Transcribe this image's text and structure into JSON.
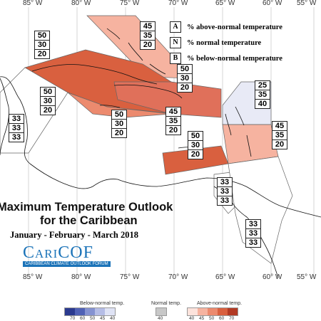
{
  "longitudes": {
    "top": [
      "85° W",
      "80° W",
      "75° W",
      "70° W",
      "65° W",
      "60° W",
      "55° W"
    ],
    "bottom": [
      "85° W",
      "80° W",
      "75° W",
      "70° W",
      "65° W",
      "60° W",
      "55° W"
    ]
  },
  "legend": {
    "items": [
      {
        "key": "A",
        "text": "% above-normal temperature"
      },
      {
        "key": "N",
        "text": "% normal temperature"
      },
      {
        "key": "B",
        "text": "% below-normal temperature"
      }
    ]
  },
  "probability_boxes": [
    {
      "id": "bahamas",
      "values": [
        "45",
        "35",
        "20"
      ]
    },
    {
      "id": "west-cuba",
      "values": [
        "50",
        "30",
        "20"
      ]
    },
    {
      "id": "turks-caicos",
      "values": [
        "50",
        "30",
        "20"
      ]
    },
    {
      "id": "cuba-central",
      "values": [
        "50",
        "30",
        "20"
      ]
    },
    {
      "id": "jamaica",
      "values": [
        "50",
        "30",
        "20"
      ]
    },
    {
      "id": "hispaniola",
      "values": [
        "45",
        "35",
        "20"
      ]
    },
    {
      "id": "leeward-islands",
      "values": [
        "25",
        "35",
        "40"
      ]
    },
    {
      "id": "windward-islands",
      "values": [
        "45",
        "35",
        "20"
      ]
    },
    {
      "id": "puerto-rico",
      "values": [
        "50",
        "30",
        "20"
      ]
    },
    {
      "id": "central-america",
      "values": [
        "33",
        "33",
        "33"
      ]
    },
    {
      "id": "abc-islands",
      "values": [
        "33",
        "33",
        "33"
      ]
    },
    {
      "id": "guianas",
      "values": [
        "33",
        "33",
        "33"
      ]
    }
  ],
  "title": {
    "line1": "Maximum Temperature Outlook",
    "line2": "for the Caribbean",
    "period": "January - February - March 2018"
  },
  "logo": {
    "name": "CariCOF",
    "tagline": "CARIBBEAN CLIMATE OUTLOOK FORUM"
  },
  "colorbar": {
    "below_title": "Below-normal temp.",
    "normal_title": "Normal temp.",
    "above_title": "Above-normal temp.",
    "below_labels": [
      "70",
      "60",
      "50",
      "45",
      "40"
    ],
    "normal_labels": [
      "40"
    ],
    "above_labels": [
      "40",
      "45",
      "50",
      "60",
      "70"
    ],
    "below_colors": [
      "#2b3a8f",
      "#5061b5",
      "#8592d1",
      "#b5bde6",
      "#dfe3f5"
    ],
    "normal_color": "#c8c8c8",
    "above_colors": [
      "#fde3dc",
      "#f6b3a0",
      "#ec8a6e",
      "#d9603f",
      "#b23a24"
    ]
  }
}
